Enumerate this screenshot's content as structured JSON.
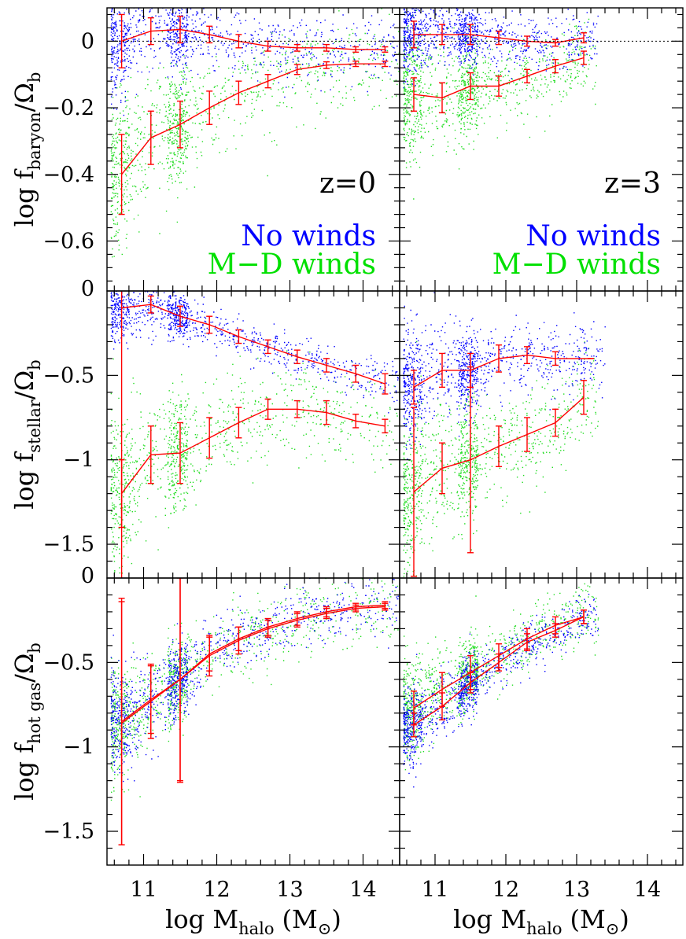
{
  "chart_data": {
    "type": "scatter",
    "layout": "3 rows x 2 columns, shared x axis",
    "x_axis": {
      "label": {
        "main": "log M",
        "sub": "halo",
        "unit_open": "(M",
        "unit_symbol": "⊙",
        "unit_close": ")"
      },
      "range": [
        10.5,
        14.5
      ],
      "ticks": [
        11,
        12,
        13,
        14
      ],
      "tick_labels": [
        "11",
        "12",
        "13",
        "14"
      ]
    },
    "columns": [
      {
        "redshift_label": "z=0"
      },
      {
        "redshift_label": "z=3"
      }
    ],
    "legend": {
      "position": "lower-right of top panels",
      "entries": [
        {
          "label": "No winds",
          "color": "#0000ff"
        },
        {
          "label": "M−D winds",
          "color": "#00e000"
        }
      ]
    },
    "colors": {
      "no_winds": "#0000ff",
      "md_winds": "#22dd22",
      "median": "#ff0000",
      "zero_line": "#000000"
    },
    "rows": [
      {
        "quantity": "baryon",
        "ylabel": {
          "main": "log f",
          "sub": "baryon",
          "rest": "/Ω",
          "rest_sub": "b"
        },
        "ylim": [
          -0.75,
          0.1
        ],
        "ticks": [
          0,
          -0.2,
          -0.4,
          -0.6
        ],
        "tick_labels": [
          "0",
          "−0.2",
          "−0.4",
          "−0.6"
        ],
        "zero_line": true,
        "panels": [
          {
            "column": "z=0",
            "series": [
              {
                "name": "No winds",
                "x": [
                  10.7,
                  11.1,
                  11.5,
                  11.9,
                  12.3,
                  12.7,
                  13.1,
                  13.5,
                  13.9,
                  14.3
                ],
                "median": [
                  0.0,
                  0.03,
                  0.035,
                  0.02,
                  0.0,
                  -0.015,
                  -0.02,
                  -0.02,
                  -0.025,
                  -0.025
                ],
                "err": [
                  0.08,
                  0.04,
                  0.04,
                  0.025,
                  0.02,
                  0.015,
                  0.01,
                  0.01,
                  0.008,
                  0.008
                ],
                "scatter_sd": 0.05
              },
              {
                "name": "M−D winds",
                "x": [
                  10.7,
                  11.1,
                  11.5,
                  11.9,
                  12.3,
                  12.7,
                  13.1,
                  13.5,
                  13.9,
                  14.3
                ],
                "median": [
                  -0.4,
                  -0.29,
                  -0.25,
                  -0.2,
                  -0.155,
                  -0.12,
                  -0.085,
                  -0.072,
                  -0.068,
                  -0.068
                ],
                "err": [
                  0.12,
                  0.08,
                  0.07,
                  0.05,
                  0.035,
                  0.02,
                  0.015,
                  0.01,
                  0.008,
                  0.008
                ],
                "scatter_sd": 0.07
              }
            ]
          },
          {
            "column": "z=3",
            "series": [
              {
                "name": "No winds",
                "x": [
                  10.7,
                  11.1,
                  11.5,
                  11.9,
                  12.3,
                  12.7,
                  13.1
                ],
                "median": [
                  0.02,
                  0.02,
                  0.02,
                  0.01,
                  0.0,
                  -0.005,
                  0.01
                ],
                "err": [
                  0.04,
                  0.03,
                  0.03,
                  0.02,
                  0.015,
                  0.01,
                  0.015
                ],
                "scatter_sd": 0.035
              },
              {
                "name": "M−D winds",
                "x": [
                  10.7,
                  11.1,
                  11.5,
                  11.9,
                  12.3,
                  12.7,
                  13.1
                ],
                "median": [
                  -0.16,
                  -0.17,
                  -0.135,
                  -0.135,
                  -0.105,
                  -0.075,
                  -0.05
                ],
                "err": [
                  0.05,
                  0.045,
                  0.04,
                  0.03,
                  0.02,
                  0.02,
                  0.02
                ],
                "scatter_sd": 0.06
              }
            ]
          }
        ]
      },
      {
        "quantity": "stellar",
        "ylabel": {
          "main": "log f",
          "sub": "stellar",
          "rest": "/Ω",
          "rest_sub": "b"
        },
        "ylim": [
          -1.7,
          0.0
        ],
        "ticks": [
          0,
          -0.5,
          -1,
          -1.5
        ],
        "tick_labels": [
          "0",
          "−0.5",
          "−1",
          "−1.5"
        ],
        "zero_line": false,
        "panels": [
          {
            "column": "z=0",
            "series": [
              {
                "name": "No winds",
                "x": [
                  10.7,
                  11.1,
                  11.5,
                  11.9,
                  12.3,
                  12.7,
                  13.1,
                  13.5,
                  13.9,
                  14.3
                ],
                "median": [
                  -0.1,
                  -0.08,
                  -0.15,
                  -0.2,
                  -0.27,
                  -0.33,
                  -0.39,
                  -0.44,
                  -0.49,
                  -0.55
                ],
                "err": [
                  1.7,
                  0.05,
                  0.06,
                  0.05,
                  0.04,
                  0.04,
                  0.04,
                  0.04,
                  0.05,
                  0.06
                ],
                "scatter_sd": 0.06
              },
              {
                "name": "M−D winds",
                "x": [
                  10.7,
                  11.1,
                  11.5,
                  11.9,
                  12.3,
                  12.7,
                  13.1,
                  13.5,
                  13.9,
                  14.3
                ],
                "median": [
                  -1.2,
                  -0.97,
                  -0.96,
                  -0.87,
                  -0.78,
                  -0.7,
                  -0.7,
                  -0.72,
                  -0.77,
                  -0.8
                ],
                "err": [
                  0.2,
                  0.17,
                  0.18,
                  0.12,
                  0.09,
                  0.06,
                  0.05,
                  0.07,
                  0.04,
                  0.04
                ],
                "scatter_sd": 0.14
              }
            ]
          },
          {
            "column": "z=3",
            "series": [
              {
                "name": "No winds",
                "x": [
                  10.7,
                  11.1,
                  11.5,
                  11.9,
                  12.3,
                  12.7,
                  13.2
                ],
                "median": [
                  -0.57,
                  -0.47,
                  -0.47,
                  -0.4,
                  -0.38,
                  -0.4,
                  -0.4
                ],
                "err": [
                  0.1,
                  0.1,
                  0.1,
                  0.08,
                  0.05,
                  0.04,
                  0.0
                ],
                "scatter_sd": 0.1
              },
              {
                "name": "M−D winds",
                "x": [
                  10.7,
                  11.1,
                  11.5,
                  11.9,
                  12.3,
                  12.7,
                  13.1
                ],
                "median": [
                  -1.19,
                  -1.05,
                  -1.0,
                  -0.92,
                  -0.85,
                  -0.78,
                  -0.63
                ],
                "err": [
                  0.5,
                  0.15,
                  0.55,
                  0.12,
                  0.1,
                  0.08,
                  0.1
                ],
                "scatter_sd": 0.15
              }
            ]
          }
        ]
      },
      {
        "quantity": "hot gas",
        "ylabel": {
          "main": "log f",
          "sub": "hot gas",
          "rest": "/Ω",
          "rest_sub": "b"
        },
        "ylim": [
          -1.7,
          0.0
        ],
        "ticks": [
          0,
          -0.5,
          -1,
          -1.5
        ],
        "tick_labels": [
          "0",
          "−0.5",
          "−1",
          "−1.5"
        ],
        "zero_line": false,
        "panels": [
          {
            "column": "z=0",
            "series": [
              {
                "name": "No winds",
                "x": [
                  10.7,
                  11.1,
                  11.5,
                  11.9,
                  12.3,
                  12.7,
                  13.1,
                  13.5,
                  13.9,
                  14.3
                ],
                "median": [
                  -0.85,
                  -0.72,
                  -0.6,
                  -0.45,
                  -0.36,
                  -0.29,
                  -0.24,
                  -0.2,
                  -0.17,
                  -0.16
                ],
                "err": [
                  0.73,
                  0.2,
                  0.6,
                  0.1,
                  0.07,
                  0.05,
                  0.04,
                  0.03,
                  0.02,
                  0.02
                ],
                "scatter_sd": 0.09
              },
              {
                "name": "M−D winds",
                "x": [
                  10.7,
                  11.1,
                  11.5,
                  11.9,
                  12.3,
                  12.7,
                  13.1,
                  13.5,
                  13.9,
                  14.3
                ],
                "median": [
                  -0.86,
                  -0.73,
                  -0.6,
                  -0.46,
                  -0.37,
                  -0.3,
                  -0.25,
                  -0.21,
                  -0.18,
                  -0.17
                ],
                "err": [
                  0.72,
                  0.22,
                  0.61,
                  0.12,
                  0.08,
                  0.05,
                  0.04,
                  0.03,
                  0.02,
                  0.02
                ],
                "scatter_sd": 0.1
              }
            ]
          },
          {
            "column": "z=3",
            "series": [
              {
                "name": "No winds",
                "x": [
                  10.7,
                  11.1,
                  11.5,
                  11.9,
                  12.3,
                  12.7,
                  13.1
                ],
                "median": [
                  -0.87,
                  -0.76,
                  -0.62,
                  -0.5,
                  -0.38,
                  -0.31,
                  -0.23
                ],
                "err": [
                  0.07,
                  0.08,
                  0.06,
                  0.05,
                  0.05,
                  0.04,
                  0.04
                ],
                "scatter_sd": 0.07
              },
              {
                "name": "M−D winds",
                "x": [
                  10.7,
                  11.1,
                  11.5,
                  11.9,
                  12.3,
                  12.7,
                  13.1
                ],
                "median": [
                  -0.77,
                  -0.66,
                  -0.56,
                  -0.46,
                  -0.36,
                  -0.28,
                  -0.23
                ],
                "err": [
                  0.1,
                  0.1,
                  0.1,
                  0.07,
                  0.06,
                  0.05,
                  0.04
                ],
                "scatter_sd": 0.09
              }
            ]
          }
        ]
      }
    ]
  }
}
